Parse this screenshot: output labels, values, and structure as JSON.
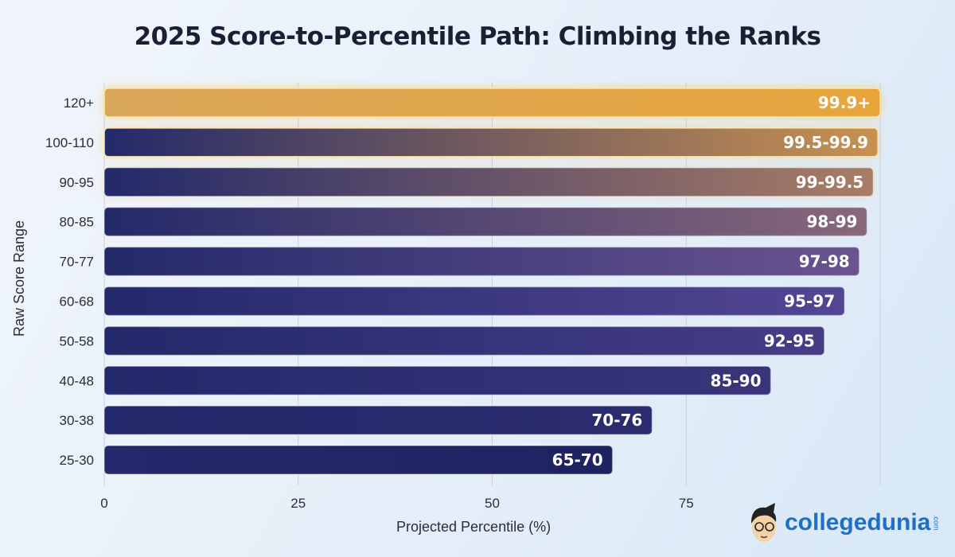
{
  "chart_data": {
    "type": "bar",
    "orientation": "horizontal",
    "title": "2025 Score-to-Percentile Path: Climbing the Ranks",
    "xlabel": "Projected Percentile (%)",
    "ylabel": "Raw Score Range",
    "xlim": [
      0,
      100
    ],
    "xticks": [
      "0",
      "25",
      "50",
      "75"
    ],
    "grid": "vertical",
    "categories": [
      "120+",
      "100-110",
      "90-95",
      "80-85",
      "70-77",
      "60-68",
      "50-58",
      "40-48",
      "30-38",
      "25-30"
    ],
    "values": [
      100,
      99.7,
      99.1,
      98.3,
      97.3,
      95.4,
      92.8,
      85.9,
      70.6,
      65.5
    ],
    "data_labels": [
      "99.9+",
      "99.5-99.9",
      "99-99.5",
      "98-99",
      "97-98",
      "95-97",
      "92-95",
      "85-90",
      "70-76",
      "65-70"
    ],
    "colors": {
      "low": "#1e2462",
      "mid": "#5a4a9a",
      "high": "#e8a53c"
    }
  },
  "logo": {
    "text": "collegedunia",
    "suffix": ".com"
  }
}
